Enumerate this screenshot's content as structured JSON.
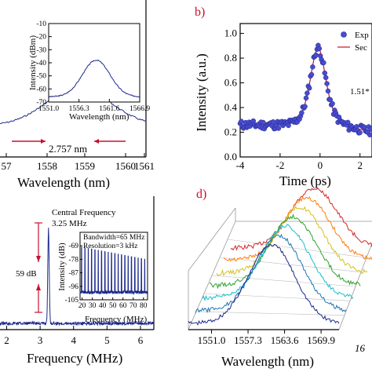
{
  "chart_data": [
    {
      "panel": "a",
      "type": "line",
      "xlabel": "Wavelength (nm)",
      "x_ticks": [
        "57",
        "1558",
        "1559",
        "1560",
        "1561"
      ],
      "annotation": "2.757 nm",
      "series": [
        {
          "x": [
            1556.8,
            1557.5,
            1558.2,
            1558.8,
            1559.3,
            1559.7,
            1560.2,
            1560.8,
            1561.5
          ],
          "y": [
            0.35,
            0.55,
            0.74,
            0.87,
            0.92,
            0.89,
            0.78,
            0.58,
            0.38
          ]
        }
      ],
      "inset": {
        "ylabel": "Intensity (dBm)",
        "xlabel": "Wavelength (nm)",
        "y_ticks": [
          "-10",
          "-20",
          "-30",
          "-40",
          "-50",
          "-60",
          "-70"
        ],
        "ylim": [
          -70,
          -10
        ],
        "x_ticks": [
          "1551.0",
          "1556.3",
          "1561.6",
          "1566.9"
        ],
        "xlim": [
          1551.0,
          1566.9
        ],
        "series": [
          {
            "x": [
              1551.0,
              1553.0,
              1555.0,
              1557.0,
              1558.5,
              1559.5,
              1561.0,
              1563.0,
              1565.0,
              1566.9
            ],
            "y": [
              -66,
              -62,
              -55,
              -46,
              -40,
              -38,
              -42,
              -52,
              -61,
              -66
            ]
          }
        ]
      }
    },
    {
      "panel": "b",
      "type": "scatter",
      "ylabel": "Intensity (a.u.)",
      "xlabel": "Time  (ps)",
      "x_ticks": [
        "-4",
        "-2",
        "0",
        "2"
      ],
      "xlim": [
        -4,
        2.6
      ],
      "y_ticks": [
        "0.0",
        "0.2",
        "0.4",
        "0.6",
        "0.8",
        "1.0"
      ],
      "ylim": [
        0,
        1.08
      ],
      "legend": [
        "Exp",
        "Sec"
      ],
      "annotation": "1.51*",
      "series": [
        {
          "x": [
            -4,
            -3.5,
            -3,
            -2.5,
            -2,
            -1.5,
            -1,
            -0.6,
            -0.3,
            0,
            0.3,
            0.6,
            1,
            1.5,
            2,
            2.5
          ],
          "y": [
            0.31,
            0.31,
            0.32,
            0.31,
            0.3,
            0.32,
            0.42,
            0.6,
            0.8,
            0.89,
            0.8,
            0.6,
            0.4,
            0.27,
            0.22,
            0.2
          ]
        }
      ]
    },
    {
      "panel": "c",
      "type": "line",
      "xlabel": "Frequency (MHz)",
      "x_ticks": [
        "2",
        "3",
        "4",
        "5",
        "6"
      ],
      "xlim": [
        1.8,
        6.4
      ],
      "annotations": [
        "Central Frequency",
        "3.25 MHz",
        "59 dB"
      ],
      "inset": {
        "ylabel": "Intensity (dB)",
        "xlabel": "Frequency (MHz)",
        "y_ticks": [
          "-69",
          "-78",
          "-87",
          "-96",
          "-105"
        ],
        "ylim": [
          -105,
          -60
        ],
        "x_ticks": [
          "20",
          "30",
          "40",
          "50",
          "60",
          "70",
          "80"
        ],
        "xlim": [
          18,
          84
        ],
        "notes": [
          "Bandwidth=65 MHz",
          "Resolution=3 kHz"
        ]
      }
    },
    {
      "panel": "d",
      "type": "line",
      "xlabel": "Wavelength (nm)",
      "x_ticks": [
        "1551.0",
        "1557.3",
        "1563.6",
        "1569.9"
      ],
      "xlim": [
        1547,
        1573
      ],
      "axis_fragment": "16"
    }
  ],
  "panel_labels": {
    "b": "b)",
    "d": "d)"
  }
}
